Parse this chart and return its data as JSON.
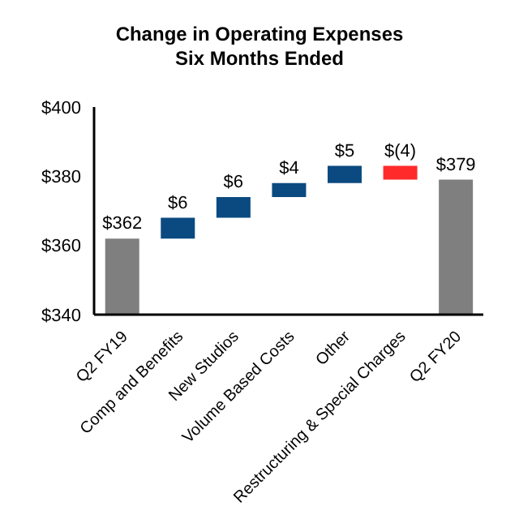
{
  "chart_data": {
    "type": "bar",
    "title": "Change in Operating Expenses\nSix Months Ended",
    "categories": [
      "Q2 FY19",
      "Comp and Benefits",
      "New Studios",
      "Volume Based Costs",
      "Other",
      "Restructuring & Special Charges",
      "Q2 FY20"
    ],
    "values": [
      362,
      6,
      6,
      4,
      5,
      -4,
      379
    ],
    "base": [
      null,
      362,
      368,
      374,
      378,
      383,
      null
    ],
    "colors": [
      "#7f7f7f",
      "#0b4a80",
      "#0b4a80",
      "#0b4a80",
      "#0b4a80",
      "#ff2a2a",
      "#7f7f7f"
    ],
    "value_labels": [
      "$362",
      "$6",
      "$6",
      "$4",
      "$5",
      "$(4)",
      "$379"
    ],
    "ylim": [
      340,
      400
    ],
    "yticks": [
      {
        "value": 340,
        "label": "$340"
      },
      {
        "value": 360,
        "label": "$360"
      },
      {
        "value": 380,
        "label": "$380"
      },
      {
        "value": 400,
        "label": "$400"
      }
    ],
    "grid": false,
    "legend": false
  }
}
